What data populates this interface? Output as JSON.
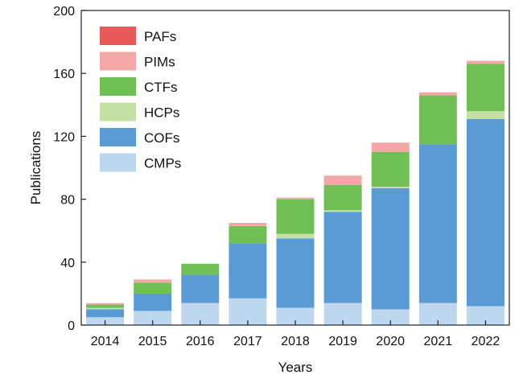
{
  "chart_data": {
    "type": "bar",
    "stacked": true,
    "xlabel": "Years",
    "ylabel": "Publications",
    "ylim": [
      0,
      200
    ],
    "yticks": [
      0,
      40,
      80,
      120,
      160,
      200
    ],
    "categories": [
      "2014",
      "2015",
      "2016",
      "2017",
      "2018",
      "2019",
      "2020",
      "2021",
      "2022"
    ],
    "legend_position": "top-left",
    "series": [
      {
        "name": "CMPs",
        "color": "#bdd7ee",
        "values": [
          5,
          9,
          14,
          17,
          11,
          14,
          10,
          14,
          12
        ]
      },
      {
        "name": "COFs",
        "color": "#5b9bd5",
        "values": [
          5,
          11,
          18,
          35,
          44,
          58,
          77,
          101,
          119
        ]
      },
      {
        "name": "HCPs",
        "color": "#c5e0a5",
        "values": [
          1,
          0,
          0,
          0,
          3,
          1,
          1,
          0,
          5
        ]
      },
      {
        "name": "CTFs",
        "color": "#70bf55",
        "values": [
          2,
          7,
          7,
          11,
          22,
          16,
          22,
          31,
          30
        ]
      },
      {
        "name": "PIMs",
        "color": "#f4a7a7",
        "values": [
          1,
          2,
          0,
          2,
          1,
          6,
          6,
          2,
          2
        ]
      },
      {
        "name": "PAFs",
        "color": "#e85a5a",
        "values": [
          0,
          0,
          0,
          0,
          0,
          0,
          0,
          0,
          0
        ]
      }
    ]
  }
}
